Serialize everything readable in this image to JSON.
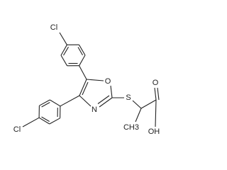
{
  "atoms": [
    {
      "label": "Cl"
    },
    {
      "label": "Cl"
    },
    {
      "label": "O"
    },
    {
      "label": "N"
    },
    {
      "label": "S"
    },
    {
      "label": "O"
    },
    {
      "label": "OH"
    },
    {
      "label": "CH3"
    }
  ]
}
